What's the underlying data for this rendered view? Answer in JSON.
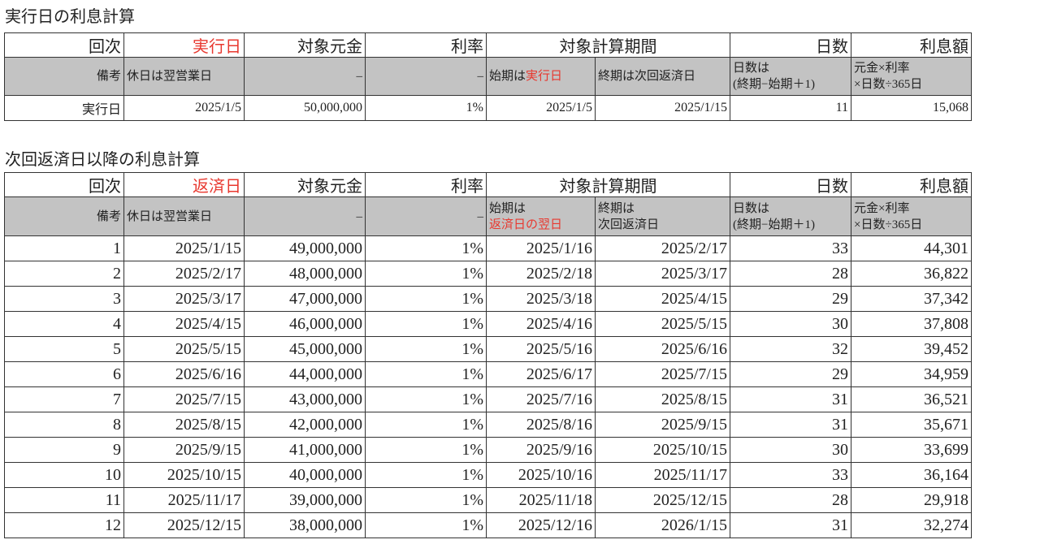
{
  "sections": [
    {
      "title": "実行日の利息計算",
      "header": [
        "回次",
        {
          "text": "実行日",
          "color": "#e8382f"
        },
        "対象元金",
        "利率",
        "対象計算期間",
        "日数",
        "利息額"
      ],
      "notes": [
        [
          [
            "備考"
          ]
        ],
        [
          [
            "休日は翌営業日"
          ]
        ],
        [
          [
            "–"
          ]
        ],
        [
          [
            "–"
          ]
        ],
        [
          [
            "始期は",
            {
              "text": "実行日",
              "color": "#e8382f"
            }
          ]
        ],
        [
          [
            "終期は次回返済日"
          ]
        ],
        [
          [
            "日数は"
          ],
          [
            "(終期−始期＋1)"
          ]
        ],
        [
          [
            "元金×利率"
          ],
          [
            "×日数÷365日"
          ]
        ]
      ],
      "rows": [
        [
          "実行日",
          "2025/1/5",
          "50,000,000",
          "1%",
          "2025/1/5",
          "2025/1/15",
          "11",
          "15,068"
        ]
      ]
    },
    {
      "title": "次回返済日以降の利息計算",
      "header": [
        "回次",
        {
          "text": "返済日",
          "color": "#e8382f"
        },
        "対象元金",
        "利率",
        "対象計算期間",
        "日数",
        "利息額"
      ],
      "notes": [
        [
          [
            "備考"
          ]
        ],
        [
          [
            "休日は翌営業日"
          ]
        ],
        [
          [
            "–"
          ]
        ],
        [
          [
            "–"
          ]
        ],
        [
          [
            "始期は"
          ],
          [
            {
              "text": "返済日の翌日",
              "color": "#e8382f"
            }
          ]
        ],
        [
          [
            "終期は"
          ],
          [
            "次回返済日"
          ]
        ],
        [
          [
            "日数は"
          ],
          [
            "(終期−始期＋1)"
          ]
        ],
        [
          [
            "元金×利率"
          ],
          [
            "×日数÷365日"
          ]
        ]
      ],
      "rows": [
        [
          "1",
          "2025/1/15",
          "49,000,000",
          "1%",
          "2025/1/16",
          "2025/2/17",
          "33",
          "44,301"
        ],
        [
          "2",
          "2025/2/17",
          "48,000,000",
          "1%",
          "2025/2/18",
          "2025/3/17",
          "28",
          "36,822"
        ],
        [
          "3",
          "2025/3/17",
          "47,000,000",
          "1%",
          "2025/3/18",
          "2025/4/15",
          "29",
          "37,342"
        ],
        [
          "4",
          "2025/4/15",
          "46,000,000",
          "1%",
          "2025/4/16",
          "2025/5/15",
          "30",
          "37,808"
        ],
        [
          "5",
          "2025/5/15",
          "45,000,000",
          "1%",
          "2025/5/16",
          "2025/6/16",
          "32",
          "39,452"
        ],
        [
          "6",
          "2025/6/16",
          "44,000,000",
          "1%",
          "2025/6/17",
          "2025/7/15",
          "29",
          "34,959"
        ],
        [
          "7",
          "2025/7/15",
          "43,000,000",
          "1%",
          "2025/7/16",
          "2025/8/15",
          "31",
          "36,521"
        ],
        [
          "8",
          "2025/8/15",
          "42,000,000",
          "1%",
          "2025/8/16",
          "2025/9/15",
          "31",
          "35,671"
        ],
        [
          "9",
          "2025/9/15",
          "41,000,000",
          "1%",
          "2025/9/16",
          "2025/10/15",
          "30",
          "33,699"
        ],
        [
          "10",
          "2025/10/15",
          "40,000,000",
          "1%",
          "2025/10/16",
          "2025/11/17",
          "33",
          "36,164"
        ],
        [
          "11",
          "2025/11/17",
          "39,000,000",
          "1%",
          "2025/11/18",
          "2025/12/15",
          "28",
          "29,918"
        ],
        [
          "12",
          "2025/12/15",
          "38,000,000",
          "1%",
          "2025/12/16",
          "2026/1/15",
          "31",
          "32,274"
        ]
      ]
    }
  ]
}
